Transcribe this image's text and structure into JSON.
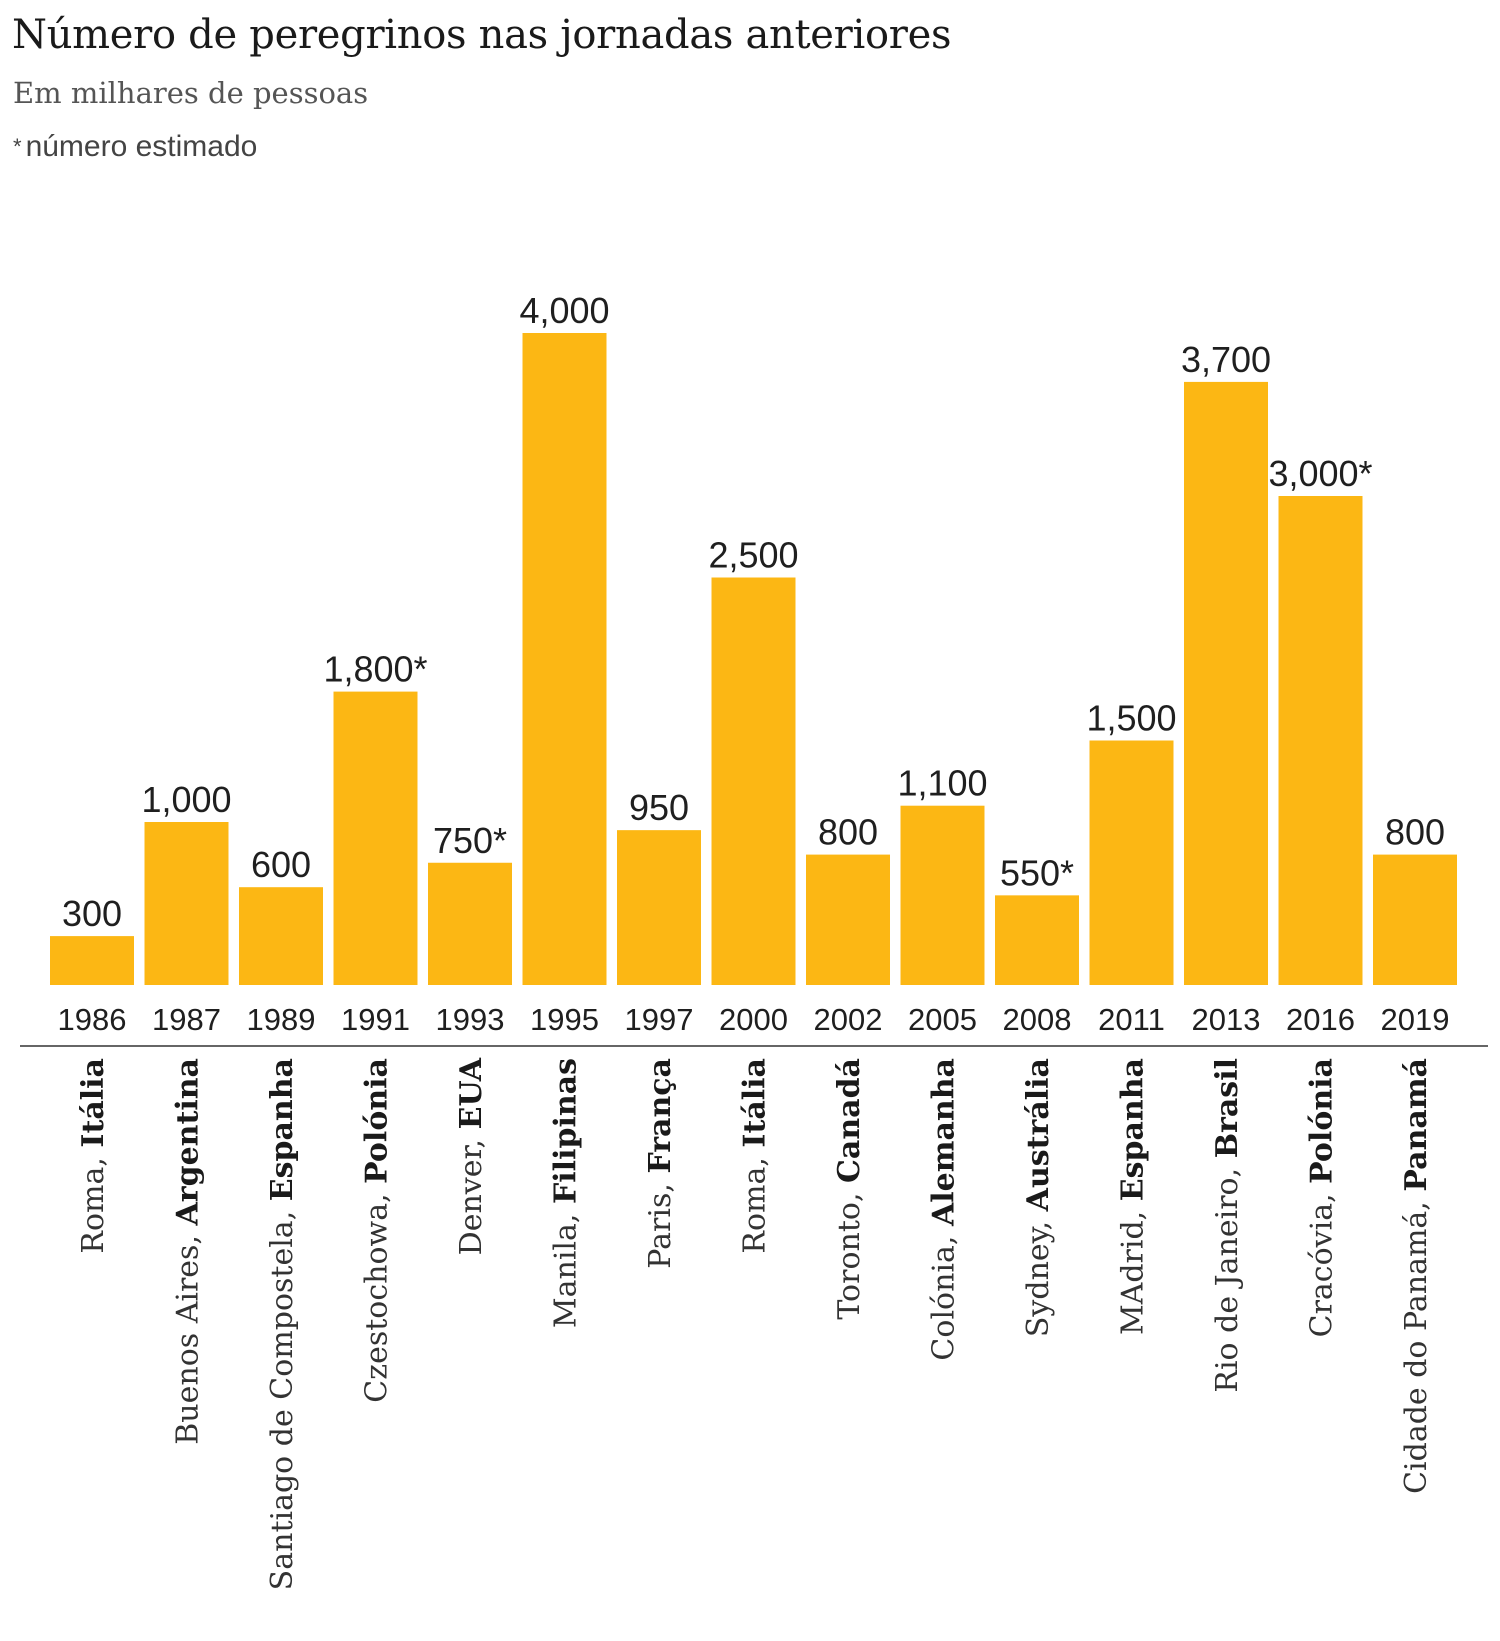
{
  "header": {
    "title": "Número de peregrinos nas jornadas anteriores",
    "subtitle": "Em milhares de pessoas",
    "note_symbol": "*",
    "note": "número estimado"
  },
  "colors": {
    "bar": "#FCB714",
    "axis": "#333333"
  },
  "chart_data": {
    "type": "bar",
    "title": "Número de peregrinos nas jornadas anteriores",
    "ylabel": "Em milhares de pessoas",
    "ylim": [
      0,
      4000
    ],
    "categories": [
      "1986",
      "1987",
      "1989",
      "1991",
      "1993",
      "1995",
      "1997",
      "2000",
      "2002",
      "2005",
      "2008",
      "2011",
      "2013",
      "2016",
      "2019"
    ],
    "values": [
      300,
      1000,
      600,
      1800,
      750,
      4000,
      950,
      2500,
      800,
      1100,
      550,
      1500,
      3700,
      3000,
      800
    ],
    "labels": [
      "300",
      "1,000",
      "600",
      "1,800*",
      "750*",
      "4,000",
      "950",
      "2,500",
      "800",
      "1,100",
      "550*",
      "1,500",
      "3,700",
      "3,000*",
      "800"
    ],
    "cities": [
      "Roma, ",
      "Buenos Aires, ",
      "Santiago de Compostela, ",
      "Czestochowa, ",
      "Denver, ",
      "Manila, ",
      "Paris, ",
      "Roma, ",
      "Toronto, ",
      "Colónia, ",
      "Sydney, ",
      "MAdrid, ",
      "Rio de Janeiro, ",
      "Cracóvia, ",
      "Cidade do Panamá, "
    ],
    "countries": [
      "Itália",
      "Argentina",
      "Espanha",
      "Polónia",
      "EUA",
      "Filipinas",
      "França",
      "Itália",
      "Canadá",
      "Alemanha",
      "Austrália",
      "Espanha",
      "Brasil",
      "Polónia",
      "Panamá"
    ]
  }
}
